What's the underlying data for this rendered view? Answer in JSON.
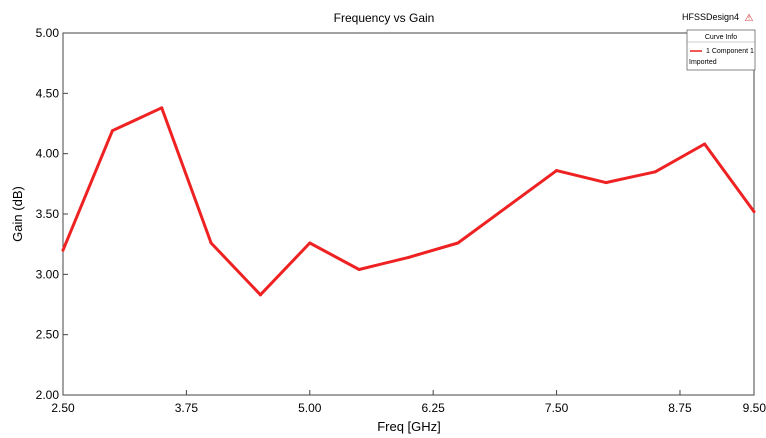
{
  "design_name": "HFSSDesign4",
  "logo_glyph": "⚠",
  "logo_color": "#cc2222",
  "legend": {
    "header": "Curve Info",
    "entry": "1 Component 1",
    "sub": "Imported"
  },
  "chart_data": {
    "type": "line",
    "title": "Frequency vs Gain",
    "xlabel": "Freq [GHz]",
    "ylabel": "Gain (dB)",
    "xlim": [
      2.5,
      9.5
    ],
    "ylim": [
      2.0,
      5.0
    ],
    "xticks": [
      "2.50",
      "3.75",
      "5.00",
      "6.25",
      "7.50",
      "8.75",
      "9.50"
    ],
    "xtick_values": [
      2.5,
      3.75,
      5.0,
      6.25,
      7.5,
      8.75,
      9.5
    ],
    "yticks": [
      "2.00",
      "2.50",
      "3.00",
      "3.50",
      "4.00",
      "4.50",
      "5.00"
    ],
    "ytick_values": [
      2.0,
      2.5,
      3.0,
      3.5,
      4.0,
      4.5,
      5.0
    ],
    "grid": false,
    "legend_position": "top-right",
    "series": [
      {
        "name": "1 Component 1",
        "color": "#ee2222",
        "x": [
          2.5,
          3.0,
          3.5,
          4.0,
          4.5,
          5.0,
          5.5,
          6.0,
          6.5,
          7.0,
          7.5,
          8.0,
          8.5,
          9.0,
          9.5
        ],
        "y": [
          3.2,
          4.19,
          4.38,
          3.26,
          2.83,
          3.26,
          3.04,
          3.14,
          3.26,
          3.56,
          3.86,
          3.76,
          3.85,
          4.08,
          3.52
        ]
      }
    ]
  }
}
